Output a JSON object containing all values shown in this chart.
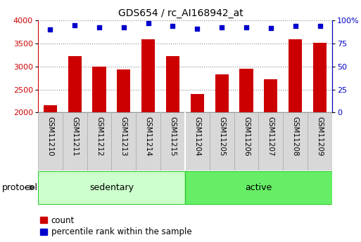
{
  "title": "GDS654 / rc_AI168942_at",
  "samples": [
    "GSM11210",
    "GSM11211",
    "GSM11212",
    "GSM11213",
    "GSM11214",
    "GSM11215",
    "GSM11204",
    "GSM11205",
    "GSM11206",
    "GSM11207",
    "GSM11208",
    "GSM11209"
  ],
  "counts": [
    2160,
    3230,
    3000,
    2940,
    3600,
    3230,
    2410,
    2830,
    2950,
    2720,
    3590,
    3510
  ],
  "percentiles": [
    90,
    95,
    93,
    93,
    97,
    94,
    91,
    93,
    93,
    92,
    94,
    94
  ],
  "groups": [
    {
      "label": "sedentary",
      "start": 0,
      "end": 6
    },
    {
      "label": "active",
      "start": 6,
      "end": 12
    }
  ],
  "bar_color": "#cc0000",
  "dot_color": "#0000cc",
  "ylim_left": [
    2000,
    4000
  ],
  "ylim_right": [
    0,
    100
  ],
  "yticks_left": [
    2000,
    2500,
    3000,
    3500,
    4000
  ],
  "yticks_right": [
    0,
    25,
    50,
    75,
    100
  ],
  "group_colors": [
    "#ccffcc",
    "#66ee66"
  ],
  "xtick_box_color": "#d8d8d8",
  "xtick_box_edge": "#aaaaaa",
  "protocol_label": "protocol",
  "legend_count_label": "count",
  "legend_pct_label": "percentile rank within the sample",
  "title_fontsize": 10,
  "axis_tick_fontsize": 8,
  "xtick_fontsize": 7.5,
  "group_label_fontsize": 9,
  "protocol_fontsize": 9,
  "legend_fontsize": 8.5
}
